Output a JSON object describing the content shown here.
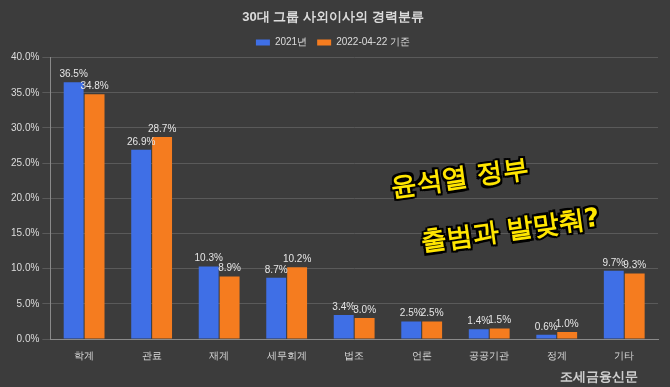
{
  "chart_data": {
    "type": "bar",
    "title": "30대 그룹 사외이사의 경력분류",
    "categories": [
      "학계",
      "관료",
      "재계",
      "세무회계",
      "법조",
      "언론",
      "공공기관",
      "정계",
      "기타"
    ],
    "series": [
      {
        "name": "2021년",
        "color": "#3f6fe6",
        "values": [
          36.5,
          26.9,
          10.3,
          8.7,
          3.4,
          2.5,
          1.4,
          0.6,
          9.7
        ],
        "value_labels": [
          "36.5%",
          "26.9%",
          "10.3%",
          "8.7%",
          "3.4%",
          "2.5%",
          "1.4%",
          "0.6%",
          "9.7%"
        ]
      },
      {
        "name": "2022-04-22 기준",
        "color": "#f57c1f",
        "values": [
          34.8,
          28.7,
          8.9,
          10.2,
          3.0,
          2.5,
          1.5,
          1.0,
          9.3
        ],
        "value_labels": [
          "34.8%",
          "28.7%",
          "8.9%",
          "10.2%",
          "3.0%",
          "2.5%",
          "1.5%",
          "1.0%",
          "9.3%"
        ]
      }
    ],
    "ylim": [
      0,
      40
    ],
    "yticks": [
      {
        "value": 0,
        "label": "0.0%"
      },
      {
        "value": 5,
        "label": "5.0%"
      },
      {
        "value": 10,
        "label": "10.0%"
      },
      {
        "value": 15,
        "label": "15.0%"
      },
      {
        "value": 20,
        "label": "20.0%"
      },
      {
        "value": 25,
        "label": "25.0%"
      },
      {
        "value": 30,
        "label": "30.0%"
      },
      {
        "value": 35,
        "label": "35.0%"
      },
      {
        "value": 40,
        "label": "40.0%"
      }
    ],
    "grid": true,
    "legend": "top",
    "data_labels": true,
    "annotations": [
      "윤석열 정부",
      "출범과 발맞춰?",
      "조세금융신문"
    ]
  }
}
